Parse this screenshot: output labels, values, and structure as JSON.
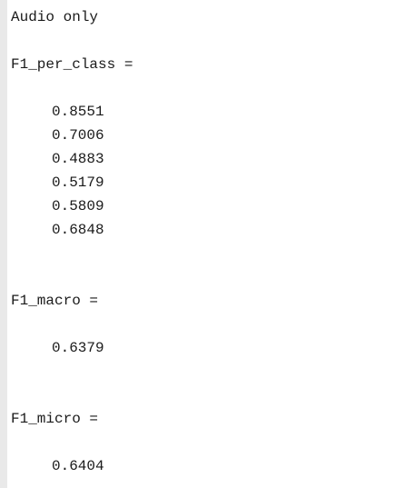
{
  "console": {
    "header_text": "Audio only",
    "f1_per_class": {
      "label": "F1_per_class =",
      "values": [
        "0.8551",
        "0.7006",
        "0.4883",
        "0.5179",
        "0.5809",
        "0.6848"
      ]
    },
    "f1_macro": {
      "label": "F1_macro =",
      "value": "0.6379"
    },
    "f1_micro": {
      "label": "F1_micro =",
      "value": "0.6404"
    }
  }
}
